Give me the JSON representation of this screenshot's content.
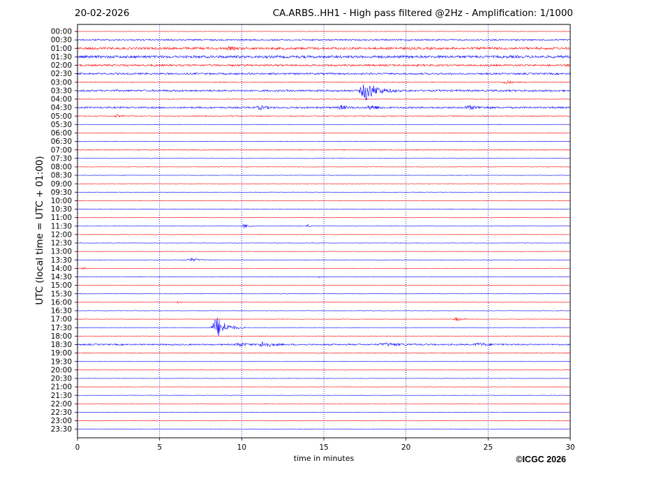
{
  "header": {
    "date": "20-02-2026",
    "title": "CA.ARBS..HH1 - High pass filtered @2Hz - Amplification: 1/1000"
  },
  "footer": {
    "copyright": "©ICGC 2026"
  },
  "chart_data": {
    "type": "line",
    "title": "CA.ARBS..HH1 - High pass filtered @2Hz - Amplification: 1/1000",
    "xlabel": "time in minutes",
    "ylabel": "UTC (local time = UTC + 01:00)",
    "xlim": [
      0,
      30
    ],
    "x_ticks": [
      0,
      5,
      10,
      15,
      20,
      25,
      30
    ],
    "x_tick_labels": [
      "0",
      "5",
      "10",
      "15",
      "20",
      "25",
      "30"
    ],
    "y_tick_labels": [
      "00:00",
      "00:30",
      "01:00",
      "01:30",
      "02:00",
      "02:30",
      "03:00",
      "03:30",
      "04:00",
      "04:30",
      "05:00",
      "05:30",
      "06:00",
      "06:30",
      "07:00",
      "07:30",
      "08:00",
      "08:30",
      "09:00",
      "09:30",
      "10:00",
      "10:30",
      "11:00",
      "11:30",
      "12:00",
      "12:30",
      "13:00",
      "13:30",
      "14:00",
      "14:30",
      "15:00",
      "15:30",
      "16:00",
      "16:30",
      "17:00",
      "17:30",
      "18:00",
      "18:30",
      "19:00",
      "19:30",
      "20:00",
      "20:30",
      "21:00",
      "21:30",
      "22:00",
      "22:30",
      "23:00",
      "23:30"
    ],
    "grid": "vertical dotted at x ticks",
    "trace_colors": [
      "#ff0000",
      "#0000ff"
    ],
    "grid_color": "#0000aa",
    "trace_noise": [
      0.3,
      1.0,
      1.6,
      1.8,
      1.3,
      1.2,
      0.5,
      1.3,
      0.4,
      1.2,
      0.6,
      0.3,
      0.3,
      0.4,
      0.6,
      0.3,
      0.3,
      0.3,
      0.3,
      0.3,
      0.3,
      0.4,
      0.3,
      0.3,
      0.3,
      0.3,
      0.3,
      0.3,
      0.3,
      0.3,
      0.3,
      0.3,
      0.3,
      0.3,
      0.3,
      0.3,
      0.3,
      1.0,
      0.5,
      0.3,
      0.3,
      0.3,
      0.3,
      0.3,
      0.3,
      0.3,
      0.3,
      0.3
    ],
    "events": [
      {
        "row": "01:00",
        "start": 9.0,
        "duration": 1.5,
        "amplitude": 1.5
      },
      {
        "row": "03:00",
        "start": 25.8,
        "duration": 1.6,
        "amplitude": 2.5
      },
      {
        "row": "03:30",
        "start": 17.1,
        "duration": 2.6,
        "amplitude": 14
      },
      {
        "row": "04:30",
        "start": 10.8,
        "duration": 1.8,
        "amplitude": 2.5
      },
      {
        "row": "04:30",
        "start": 15.8,
        "duration": 1.4,
        "amplitude": 3
      },
      {
        "row": "04:30",
        "start": 17.6,
        "duration": 1.5,
        "amplitude": 4
      },
      {
        "row": "04:30",
        "start": 23.4,
        "duration": 2.6,
        "amplitude": 2.2
      },
      {
        "row": "05:00",
        "start": 2.2,
        "duration": 0.9,
        "amplitude": 2
      },
      {
        "row": "11:30",
        "start": 10.0,
        "duration": 0.9,
        "amplitude": 3
      },
      {
        "row": "11:30",
        "start": 13.9,
        "duration": 0.7,
        "amplitude": 2
      },
      {
        "row": "13:30",
        "start": 6.6,
        "duration": 1.6,
        "amplitude": 3
      },
      {
        "row": "14:00",
        "start": 0.2,
        "duration": 0.6,
        "amplitude": 2.2
      },
      {
        "row": "14:30",
        "start": 14.6,
        "duration": 0.5,
        "amplitude": 1.5
      },
      {
        "row": "16:00",
        "start": 6.0,
        "duration": 0.6,
        "amplitude": 1.5
      },
      {
        "row": "17:00",
        "start": 22.8,
        "duration": 1.5,
        "amplitude": 2.5
      },
      {
        "row": "17:30",
        "start": 8.1,
        "duration": 2.2,
        "amplitude": 16
      },
      {
        "row": "18:30",
        "start": 9.5,
        "duration": 2.0,
        "amplitude": 2.5
      },
      {
        "row": "18:30",
        "start": 11.0,
        "duration": 1.8,
        "amplitude": 4.5
      },
      {
        "row": "18:30",
        "start": 18.2,
        "duration": 3.6,
        "amplitude": 2
      },
      {
        "row": "18:30",
        "start": 24.0,
        "duration": 2.5,
        "amplitude": 2
      }
    ]
  }
}
